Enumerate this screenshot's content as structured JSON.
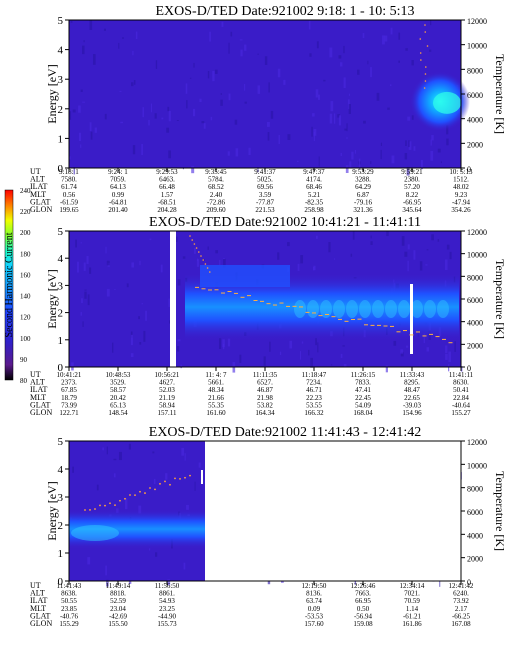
{
  "chart_data": [
    {
      "type": "heatmap",
      "title": "EXOS-D/TED   Date:921002   9:18: 1 - 10: 5:13",
      "ylabel": "Energy [eV]",
      "y2label": "Temperature [K]",
      "ylim": [
        0,
        5
      ],
      "y2lim": [
        0,
        12000
      ],
      "yticks": [
        "0",
        "1",
        "2",
        "3",
        "4",
        "5"
      ],
      "y2ticks": [
        "0",
        "2000",
        "4000",
        "6000",
        "8000",
        "10000",
        "12000"
      ],
      "xticks": [
        "9:18: 1",
        "9:24: 1",
        "9:29:53",
        "9:35:45",
        "9:41:37",
        "9:47:37",
        "9:53:29",
        "9:59:21",
        "10: 5:13"
      ],
      "rows": [
        {
          "label": "UT",
          "values": []
        },
        {
          "label": "ALT",
          "values": [
            "7580.",
            "7059.",
            "6463.",
            "5784.",
            "5025.",
            "4174.",
            "3288.",
            "2380.",
            "1512."
          ]
        },
        {
          "label": "ILAT",
          "values": [
            "61.74",
            "64.13",
            "66.48",
            "68.52",
            "69.56",
            "68.46",
            "64.29",
            "57.20",
            "48.02"
          ]
        },
        {
          "label": "MLT",
          "values": [
            "0.56",
            "0.99",
            "1.57",
            "2.40",
            "3.59",
            "5.21",
            "6.87",
            "8.22",
            "9.23"
          ]
        },
        {
          "label": "GLAT",
          "values": [
            "-61.59",
            "-64.81",
            "-68.51",
            "-72.86",
            "-77.87",
            "-82.35",
            "-79.16",
            "-66.95",
            "-47.94"
          ]
        },
        {
          "label": "GLON",
          "values": [
            "199.65",
            "201.40",
            "204.28",
            "209.60",
            "221.53",
            "258.98",
            "321.36",
            "345.64",
            "354.26"
          ]
        }
      ]
    },
    {
      "type": "heatmap",
      "title": "EXOS-D/TED   Date:921002   10:41:21 - 11:41:11",
      "ylabel": "Energy [eV]",
      "y2label": "Temperature [K]",
      "ylim": [
        0,
        5
      ],
      "y2lim": [
        0,
        12000
      ],
      "yticks": [
        "0",
        "1",
        "2",
        "3",
        "4",
        "5"
      ],
      "y2ticks": [
        "0",
        "2000",
        "4000",
        "6000",
        "8000",
        "10000",
        "12000"
      ],
      "xticks": [
        "10:41:21",
        "10:48:53",
        "10:56:21",
        "11: 4: 7",
        "11:11:35",
        "11:18:47",
        "11:26:15",
        "11:33:43",
        "11:41:11"
      ],
      "rows": [
        {
          "label": "UT",
          "values": []
        },
        {
          "label": "ALT",
          "values": [
            "2373.",
            "3529.",
            "4627.",
            "5661.",
            "6527.",
            "7234.",
            "7833.",
            "8295.",
            "8630."
          ]
        },
        {
          "label": "ILAT",
          "values": [
            "67.85",
            "58.57",
            "52.03",
            "48.34",
            "46.87",
            "46.71",
            "47.41",
            "48.47",
            "50.41"
          ]
        },
        {
          "label": "MLT",
          "values": [
            "18.79",
            "20.42",
            "21.19",
            "21.66",
            "21.98",
            "22.23",
            "22.45",
            "22.65",
            "22.84"
          ]
        },
        {
          "label": "GLAT",
          "values": [
            "73.99",
            "65.13",
            "58.94",
            "55.35",
            "53.82",
            "53.55",
            "54.09",
            "-39.03",
            "-40.64"
          ]
        },
        {
          "label": "GLON",
          "values": [
            "122.71",
            "148.54",
            "157.11",
            "161.60",
            "164.34",
            "166.32",
            "168.04",
            "154.96",
            "155.27"
          ]
        }
      ]
    },
    {
      "type": "heatmap",
      "title": "EXOS-D/TED   Date:921002   11:41:43 - 12:41:42",
      "ylabel": "Energy [eV]",
      "y2label": "Temperature [K]",
      "ylim": [
        0,
        5
      ],
      "y2lim": [
        0,
        12000
      ],
      "yticks": [
        "0",
        "1",
        "2",
        "3",
        "4",
        "5"
      ],
      "y2ticks": [
        "0",
        "2000",
        "4000",
        "6000",
        "8000",
        "10000",
        "12000"
      ],
      "xticks": [
        "11:41:43",
        "11:49:14",
        "11:56:50",
        "",
        "",
        "12:19:50",
        "12:26:46",
        "12:34:14",
        "12:41:42"
      ],
      "rows": [
        {
          "label": "UT",
          "values": []
        },
        {
          "label": "ALT",
          "values": [
            "8638.",
            "8818.",
            "8861.",
            "",
            "",
            "8136.",
            "7663.",
            "7021.",
            "6240."
          ]
        },
        {
          "label": "ILAT",
          "values": [
            "50.55",
            "52.59",
            "54.93",
            "",
            "",
            "63.74",
            "66.95",
            "70.59",
            "73.92"
          ]
        },
        {
          "label": "MLT",
          "values": [
            "23.85",
            "23.04",
            "23.25",
            "",
            "",
            "0.09",
            "0.50",
            "1.14",
            "2.17"
          ]
        },
        {
          "label": "GLAT",
          "values": [
            "-40.76",
            "-42.69",
            "-44.90",
            "",
            "",
            "-53.53",
            "-56.94",
            "-61.21",
            "-66.25"
          ]
        },
        {
          "label": "GLON",
          "values": [
            "155.29",
            "155.50",
            "155.73",
            "",
            "",
            "157.60",
            "159.08",
            "161.86",
            "167.08"
          ]
        }
      ]
    }
  ],
  "colorbar": {
    "label": "Second Harmonic Current",
    "ticks": [
      "80",
      "90",
      "100",
      "120",
      "140",
      "160",
      "180",
      "200",
      "220",
      "240"
    ],
    "colors": [
      "#000000",
      "#5a1a8c",
      "#3020c8",
      "#2040ff",
      "#1c6cff",
      "#14a0ff",
      "#10d0ff",
      "#20ffc8",
      "#40ff60",
      "#a0ff20",
      "#f0ff00",
      "#ffb000",
      "#ff5000",
      "#ff0000"
    ]
  }
}
